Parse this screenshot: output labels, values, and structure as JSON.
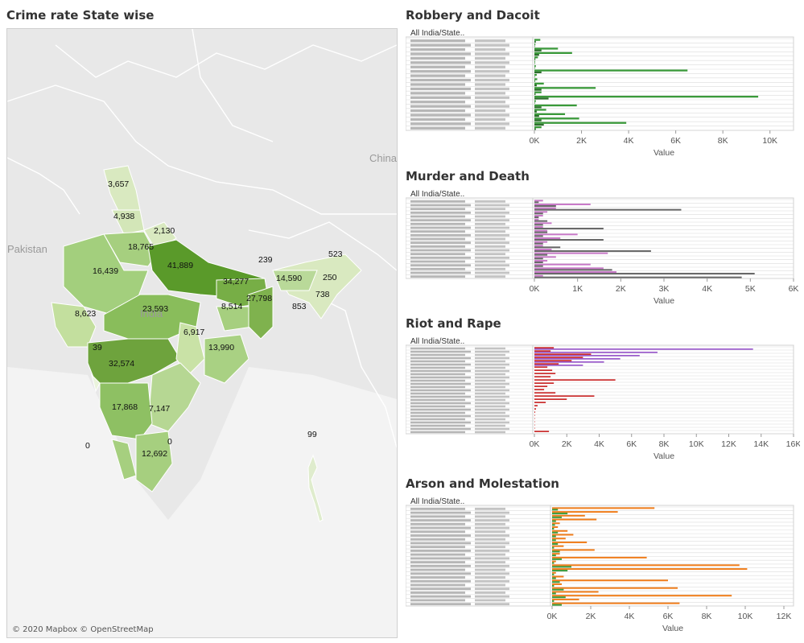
{
  "map": {
    "title": "Crime rate State wise",
    "attribution": "© 2020 Mapbox © OpenStreetMap",
    "country_labels": [
      "China",
      "Pakistan",
      "India"
    ],
    "value_labels": [
      "3,657",
      "4,938",
      "2,130",
      "18,765",
      "16,439",
      "41,889",
      "239",
      "523",
      "14,590",
      "250",
      "34,277",
      "27,798",
      "738",
      "853",
      "8,623",
      "23,593",
      "8,514",
      "6,917",
      "13,990",
      "39",
      "32,574",
      "17,868",
      "7,147",
      "0",
      "0",
      "99",
      "12,692"
    ],
    "colors": {
      "low": "#d9e9c0",
      "high": "#5a9a2a",
      "land": "#e6e6e6",
      "water": "#f2f2f2",
      "border": "#ffffff"
    }
  },
  "chart_data": [
    {
      "type": "bar",
      "title": "Robbery and Dacoit",
      "header_label": "All India/State..",
      "xlabel": "Value",
      "xlim": [
        0,
        11000
      ],
      "ticks": [
        "0K",
        "2K",
        "4K",
        "6K",
        "8K",
        "10K"
      ],
      "tick_values": [
        0,
        2000,
        4000,
        6000,
        8000,
        10000
      ],
      "colors": [
        "#3a9a3a",
        "#2d6e2d"
      ],
      "series": [
        {
          "values": [
            250,
            40,
            1000,
            1600,
            150,
            30,
            60,
            6500,
            100,
            120,
            400,
            2600,
            300,
            9500,
            60,
            1800,
            500,
            1300,
            1900,
            3900,
            300
          ]
        },
        {
          "values": [
            60,
            20,
            300,
            200,
            40,
            10,
            20,
            300,
            20,
            30,
            100,
            300,
            50,
            600,
            20,
            300,
            100,
            200,
            300,
            400,
            60
          ]
        }
      ]
    },
    {
      "type": "bar",
      "title": "Murder and Death",
      "header_label": "All India/State..",
      "xlabel": "Value",
      "xlim": [
        0,
        6000
      ],
      "ticks": [
        "0K",
        "1K",
        "2K",
        "3K",
        "4K",
        "5K",
        "6K"
      ],
      "tick_values": [
        0,
        1000,
        2000,
        3000,
        4000,
        5000,
        6000
      ],
      "colors": [
        "#c878c8",
        "#666666"
      ],
      "series": [
        {
          "values": [
            200,
            1300,
            500,
            300,
            200,
            100,
            400,
            200,
            300,
            1000,
            600,
            300,
            200,
            400,
            1700,
            500,
            300,
            1300,
            1600,
            1900,
            200
          ]
        },
        {
          "values": [
            100,
            500,
            3400,
            200,
            100,
            300,
            200,
            1600,
            300,
            200,
            1600,
            200,
            600,
            2700,
            300,
            200,
            200,
            200,
            1800,
            5100,
            4800
          ]
        }
      ]
    },
    {
      "type": "bar",
      "title": "Riot and Rape",
      "header_label": "All India/State..",
      "xlabel": "Value",
      "xlim": [
        0,
        16000
      ],
      "ticks": [
        "0K",
        "2K",
        "4K",
        "6K",
        "8K",
        "10K",
        "12K",
        "14K",
        "16K"
      ],
      "tick_values": [
        0,
        2000,
        4000,
        6000,
        8000,
        10000,
        12000,
        14000,
        16000
      ],
      "colors": [
        "#cc2d2d",
        "#9a5acc"
      ],
      "series": [
        {
          "values": [
            1200,
            1000,
            3500,
            3000,
            2300,
            1500,
            800,
            1100,
            1300,
            1000,
            5000,
            1200,
            800,
            600,
            1300,
            3700,
            2000,
            700,
            200,
            100,
            50,
            30,
            20,
            10,
            10,
            10,
            900
          ]
        },
        {
          "values": [
            13500,
            7600,
            6500,
            5300,
            4300,
            3000,
            0,
            0,
            0,
            0,
            0,
            0,
            0,
            0,
            0,
            0,
            0,
            0,
            0,
            0,
            0,
            0,
            0,
            0,
            0,
            0,
            0
          ]
        }
      ]
    },
    {
      "type": "bar",
      "title": "Arson and Molestation",
      "header_label": "All India/State..",
      "xlabel": "Value",
      "xlim": [
        0,
        12500
      ],
      "ticks": [
        "0K",
        "2K",
        "4K",
        "6K",
        "8K",
        "10K",
        "12K"
      ],
      "tick_values": [
        0,
        2000,
        4000,
        6000,
        8000,
        10000,
        12000
      ],
      "colors": [
        "#f07d1a",
        "#3a9a3a"
      ],
      "series": [
        {
          "values": [
            5300,
            3400,
            1700,
            2300,
            400,
            300,
            800,
            1100,
            700,
            1800,
            600,
            2200,
            400,
            4900,
            200,
            9700,
            10100,
            200,
            600,
            6000,
            500,
            6500,
            2400,
            9300,
            1400,
            6600
          ]
        },
        {
          "values": [
            300,
            800,
            500,
            200,
            150,
            100,
            300,
            200,
            200,
            300,
            100,
            400,
            200,
            500,
            100,
            1000,
            800,
            100,
            200,
            400,
            100,
            600,
            200,
            700,
            100,
            500
          ]
        }
      ]
    }
  ]
}
